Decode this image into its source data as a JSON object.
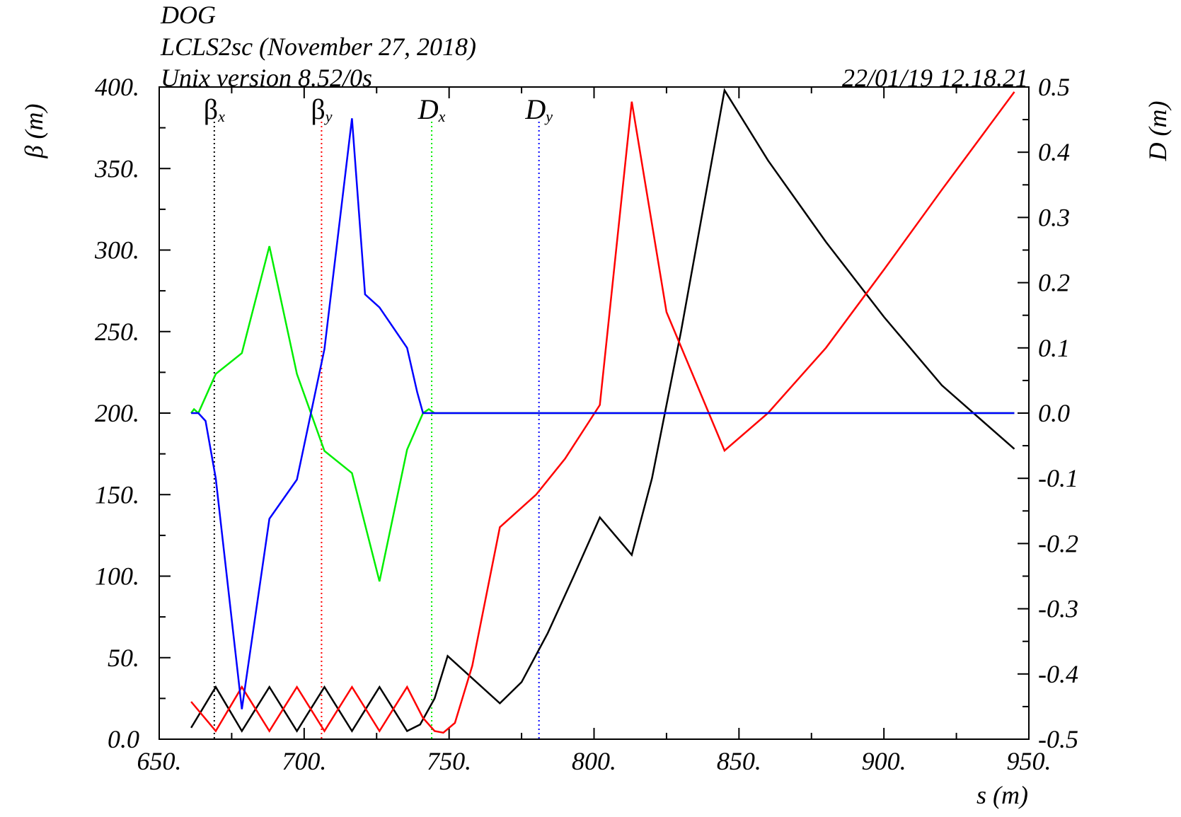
{
  "header": {
    "program": "DOG",
    "title": "LCLS2sc (November 27, 2018)",
    "version": "Unix version 8.52/0s",
    "timestamp": "22/01/19  12.18.21"
  },
  "chart_data": {
    "type": "line",
    "xlabel": "s (m)",
    "ylabel_left": "β (m)",
    "ylabel_right": "D (m)",
    "xlim": [
      650,
      950
    ],
    "ylim_left": [
      0,
      400
    ],
    "ylim_right": [
      -0.5,
      0.5
    ],
    "x_ticks": [
      "650.",
      "700.",
      "750.",
      "800.",
      "850.",
      "900.",
      "950."
    ],
    "y_left_ticks": [
      "0.0",
      "50.",
      "100.",
      "150.",
      "200.",
      "250.",
      "300.",
      "350.",
      "400."
    ],
    "y_right_ticks": [
      "-0.5",
      "-0.4",
      "-0.3",
      "-0.2",
      "-0.1",
      "0.0",
      "0.1",
      "0.2",
      "0.3",
      "0.4",
      "0.5"
    ],
    "grid": false,
    "legend": [
      {
        "symbol": "β",
        "sub": "x",
        "color": "#000000",
        "marker_s": 669
      },
      {
        "symbol": "β",
        "sub": "y",
        "color": "#ff0000",
        "marker_s": 706
      },
      {
        "symbol": "D",
        "sub": "x",
        "color": "#00ee00",
        "marker_s": 744
      },
      {
        "symbol": "D",
        "sub": "y",
        "color": "#0000ff",
        "marker_s": 781
      }
    ],
    "series": [
      {
        "key": "betax",
        "axis": "left",
        "color": "#000000",
        "x": [
          661,
          669.5,
          678.5,
          688,
          697.5,
          707,
          716.5,
          726,
          735.5,
          740,
          745,
          749.5,
          767.5,
          775,
          784,
          793,
          802,
          813,
          820,
          830,
          845,
          860,
          880,
          900,
          920,
          945
        ],
        "y": [
          7,
          32,
          5,
          32,
          5,
          32,
          5,
          32,
          5,
          9,
          25,
          51,
          22,
          35,
          65,
          100,
          136,
          113,
          160,
          250,
          398,
          355,
          305,
          259,
          217,
          178
        ]
      },
      {
        "key": "betay",
        "axis": "left",
        "color": "#ff0000",
        "x": [
          661,
          669.5,
          678.5,
          688,
          697.5,
          707,
          716.5,
          726,
          735.5,
          741,
          745,
          748,
          752,
          758,
          767.5,
          780,
          790,
          802,
          813,
          825,
          845,
          860,
          880,
          900,
          920,
          945
        ],
        "y": [
          23,
          5,
          32,
          5,
          32,
          5,
          32,
          5,
          32,
          13,
          5,
          4,
          10,
          45,
          130,
          150,
          172,
          205,
          391,
          262,
          177,
          200,
          240,
          288,
          337,
          397
        ]
      },
      {
        "key": "dx",
        "axis": "right",
        "color": "#00ee00",
        "x": [
          661,
          662,
          663.5,
          669.5,
          678.5,
          688,
          697.5,
          707,
          716.5,
          726,
          735.5,
          741,
          743,
          745,
          748,
          945
        ],
        "y": [
          0,
          0.006,
          0,
          0.06,
          0.092,
          0.256,
          0.06,
          -0.058,
          -0.092,
          -0.258,
          -0.056,
          0,
          0.006,
          0,
          0,
          0
        ]
      },
      {
        "key": "dy",
        "axis": "right",
        "color": "#0000ff",
        "x": [
          661,
          663.5,
          666,
          669.5,
          678.5,
          688,
          697.5,
          707,
          716.5,
          721,
          726,
          735.5,
          739,
          741,
          744,
          945
        ],
        "y": [
          0,
          0,
          -0.012,
          -0.1,
          -0.454,
          -0.162,
          -0.102,
          0.098,
          0.452,
          0.182,
          0.162,
          0.1,
          0.032,
          0,
          0,
          0
        ]
      }
    ]
  }
}
